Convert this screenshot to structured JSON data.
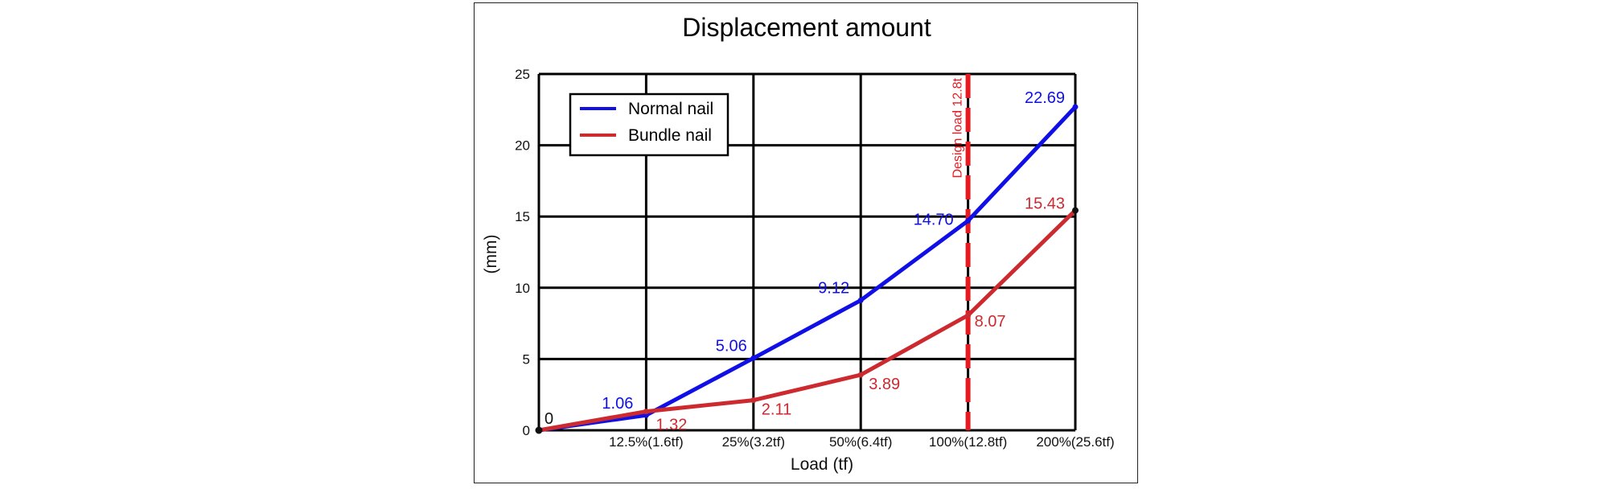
{
  "chart_data": {
    "type": "line",
    "title": "Displacement amount",
    "xlabel": "Load (tf)",
    "ylabel": "(mm)",
    "categories": [
      "",
      "12.5%(1.6tf)",
      "25%(3.2tf)",
      "50%(6.4tf)",
      "100%(12.8tf)",
      "200%(25.6tf)"
    ],
    "ylim": [
      0,
      25
    ],
    "yticks": [
      "0",
      "5",
      "10",
      "15",
      "20",
      "25"
    ],
    "grid": true,
    "legend_position": "top-left",
    "series": [
      {
        "name": "Normal nail",
        "color": "#1010e6",
        "values": [
          0,
          1.06,
          5.06,
          9.12,
          14.7,
          22.69
        ],
        "labels": [
          "",
          "1.06",
          "5.06",
          "9.12",
          "14.70",
          "22.69"
        ]
      },
      {
        "name": "Bundle nail",
        "color": "#cc2a2f",
        "values": [
          0,
          1.32,
          2.11,
          3.89,
          8.07,
          15.43
        ],
        "labels": [
          "",
          "1.32",
          "2.11",
          "3.89",
          "8.07",
          "15.43"
        ]
      }
    ],
    "origin_label": "0",
    "annotations": [
      {
        "text": "Design load 12.8t",
        "x_index": 4,
        "color": "#e8191f",
        "style": "dashed-vertical"
      }
    ]
  }
}
